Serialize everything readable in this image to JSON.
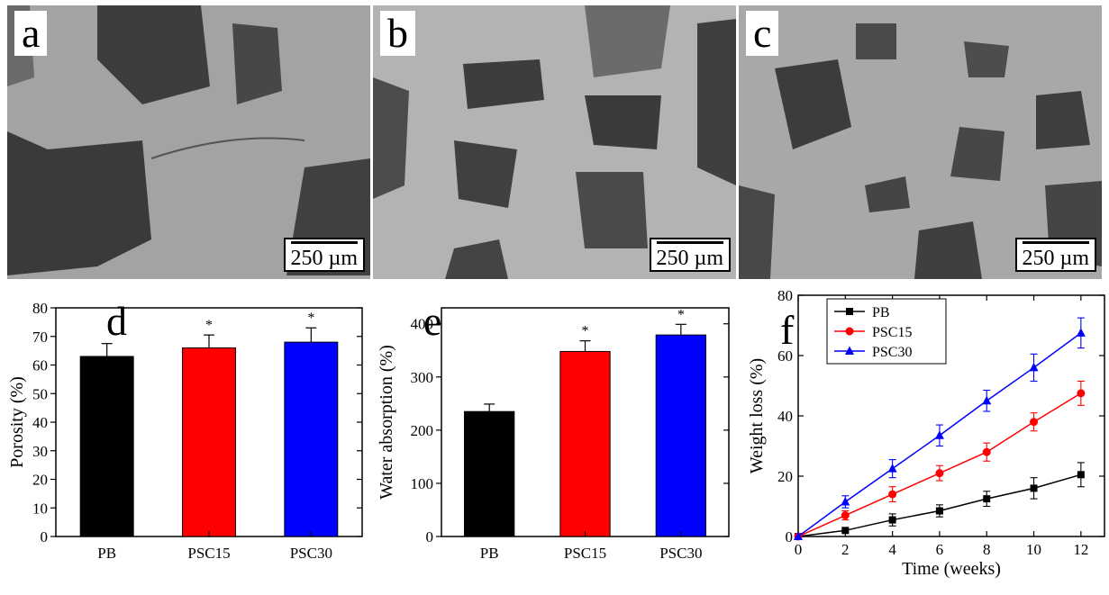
{
  "panels_sem": [
    {
      "letter": "a",
      "scale_label": "250 µm"
    },
    {
      "letter": "b",
      "scale_label": "250 µm"
    },
    {
      "letter": "c",
      "scale_label": "250 µm"
    }
  ],
  "colors": {
    "PB": "#000000",
    "PSC15": "#ff0000",
    "PSC30": "#0000ff"
  },
  "chart_data": [
    {
      "panel": "d",
      "type": "bar",
      "categories": [
        "PB",
        "PSC15",
        "PSC30"
      ],
      "values": [
        63,
        66,
        68
      ],
      "errors": [
        4.5,
        4.5,
        5
      ],
      "significance": [
        "",
        "*",
        "*"
      ],
      "colors": [
        "#000000",
        "#ff0000",
        "#0000ff"
      ],
      "ylabel": "Porosity (%)",
      "xlabel": "",
      "ylim": [
        0,
        80
      ],
      "yticks": [
        0,
        10,
        20,
        30,
        40,
        50,
        60,
        70,
        80
      ]
    },
    {
      "panel": "e",
      "type": "bar",
      "categories": [
        "PB",
        "PSC15",
        "PSC30"
      ],
      "values": [
        235,
        348,
        379
      ],
      "errors": [
        14,
        20,
        20
      ],
      "significance": [
        "",
        "*",
        "*"
      ],
      "colors": [
        "#000000",
        "#ff0000",
        "#0000ff"
      ],
      "ylabel": "Water absorption (%)",
      "xlabel": "",
      "ylim": [
        0,
        430
      ],
      "yticks": [
        0,
        100,
        200,
        300,
        400
      ]
    },
    {
      "panel": "f",
      "type": "line",
      "x": [
        0,
        2,
        4,
        6,
        8,
        10,
        12
      ],
      "series": [
        {
          "name": "PB",
          "values": [
            0,
            2,
            5.5,
            8.5,
            12.5,
            16,
            20.5
          ],
          "errors": [
            0,
            0.5,
            2,
            2,
            2.5,
            3.5,
            4
          ],
          "color": "#000000",
          "marker": "square"
        },
        {
          "name": "PSC15",
          "values": [
            0,
            7,
            14,
            21,
            28,
            38,
            47.5
          ],
          "errors": [
            0,
            1.5,
            2.5,
            2.5,
            3,
            3,
            4
          ],
          "color": "#ff0000",
          "marker": "circle"
        },
        {
          "name": "PSC30",
          "values": [
            0,
            11.5,
            22.5,
            33.5,
            45,
            56,
            67.5
          ],
          "errors": [
            0,
            2,
            3,
            3.5,
            3.5,
            4.5,
            5
          ],
          "color": "#0000ff",
          "marker": "triangle"
        }
      ],
      "xlabel": "Time (weeks)",
      "ylabel": "Weight loss (%)",
      "xlim": [
        0,
        13
      ],
      "ylim": [
        0,
        80
      ],
      "xticks": [
        0,
        2,
        4,
        6,
        8,
        10,
        12
      ],
      "yticks": [
        0,
        20,
        40,
        60,
        80
      ],
      "legend_position": "top-left"
    }
  ]
}
